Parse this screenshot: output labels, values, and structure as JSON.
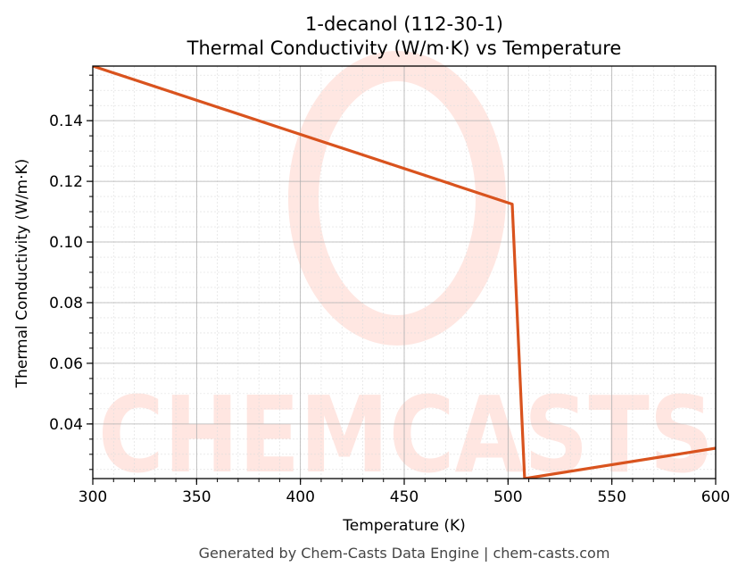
{
  "chart_data": {
    "type": "line",
    "title_line1": "1-decanol (112-30-1)",
    "title_line2": "Thermal Conductivity (W/m·K) vs Temperature",
    "xlabel": "Temperature (K)",
    "ylabel": "Thermal Conductivity (W/m·K)",
    "xlim": [
      300,
      600
    ],
    "ylim": [
      0.022,
      0.158
    ],
    "xticks": [
      300,
      350,
      400,
      450,
      500,
      550,
      600
    ],
    "yticks": [
      0.04,
      0.06,
      0.08,
      0.1,
      0.12,
      0.14
    ],
    "ytick_labels": [
      "0.04",
      "0.06",
      "0.08",
      "0.10",
      "0.12",
      "0.14"
    ],
    "grid": true,
    "series": [
      {
        "color": "#d9531e",
        "x": [
          300,
          502,
          508,
          600
        ],
        "y": [
          0.158,
          0.1125,
          0.022,
          0.032
        ]
      }
    ],
    "footer": "Generated by Chem-Casts Data Engine | chem-casts.com",
    "watermark_text": "CHEMCASTS"
  }
}
